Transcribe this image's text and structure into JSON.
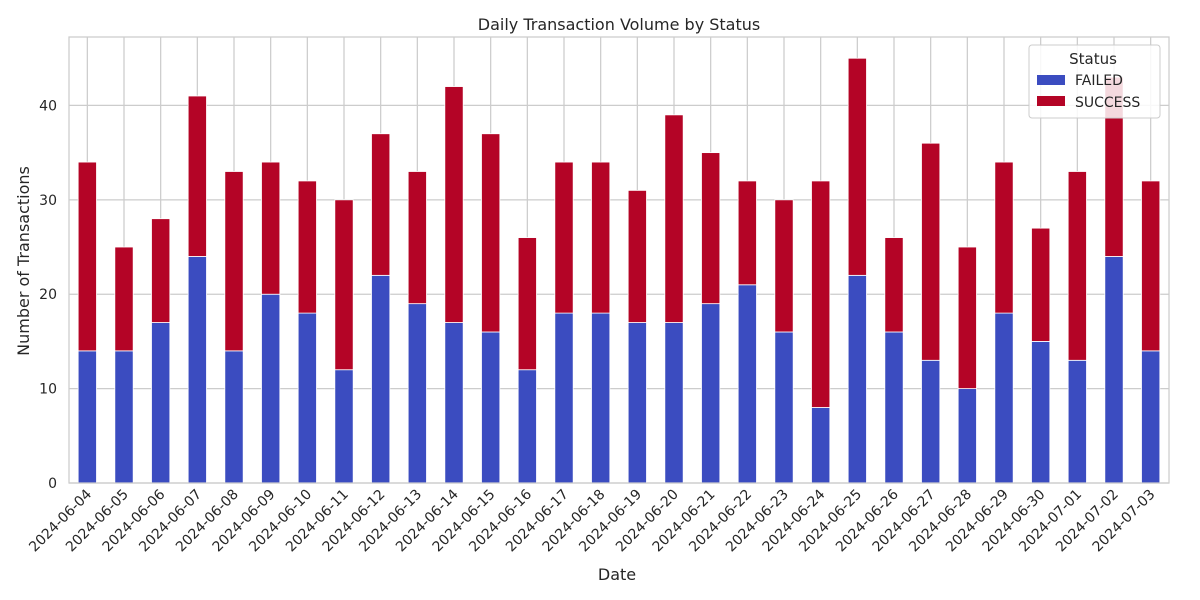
{
  "chart_data": {
    "type": "bar",
    "stacked": true,
    "title": "Daily Transaction Volume by Status",
    "xlabel": "Date",
    "ylabel": "Number of Transactions",
    "ylim": [
      0,
      47.25
    ],
    "yticks": [
      0,
      10,
      20,
      30,
      40
    ],
    "grid": true,
    "legend": {
      "title": "Status",
      "placement": "top-right"
    },
    "categories": [
      "2024-06-04",
      "2024-06-05",
      "2024-06-06",
      "2024-06-07",
      "2024-06-08",
      "2024-06-09",
      "2024-06-10",
      "2024-06-11",
      "2024-06-12",
      "2024-06-13",
      "2024-06-14",
      "2024-06-15",
      "2024-06-16",
      "2024-06-17",
      "2024-06-18",
      "2024-06-19",
      "2024-06-20",
      "2024-06-21",
      "2024-06-22",
      "2024-06-23",
      "2024-06-24",
      "2024-06-25",
      "2024-06-26",
      "2024-06-27",
      "2024-06-28",
      "2024-06-29",
      "2024-06-30",
      "2024-07-01",
      "2024-07-02",
      "2024-07-03"
    ],
    "series": [
      {
        "name": "FAILED",
        "color": "#3b4cc0",
        "values": [
          14,
          14,
          17,
          24,
          14,
          20,
          18,
          12,
          22,
          19,
          17,
          16,
          12,
          18,
          18,
          17,
          17,
          19,
          21,
          16,
          8,
          22,
          16,
          13,
          10,
          18,
          15,
          13,
          24,
          14
        ]
      },
      {
        "name": "SUCCESS",
        "color": "#b40426",
        "values": [
          20,
          11,
          11,
          17,
          19,
          14,
          14,
          18,
          15,
          14,
          25,
          21,
          14,
          16,
          16,
          14,
          22,
          16,
          11,
          14,
          24,
          23,
          10,
          23,
          15,
          16,
          12,
          20,
          19,
          18
        ]
      }
    ]
  }
}
